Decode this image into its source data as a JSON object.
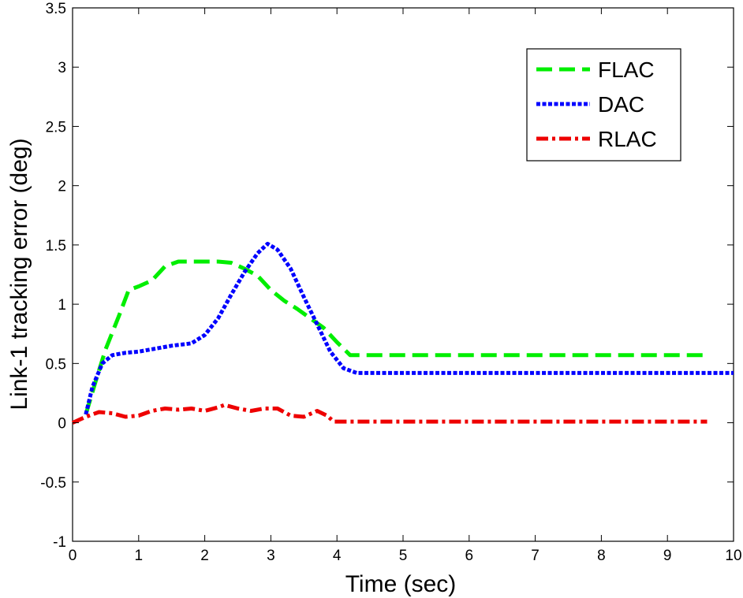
{
  "chart_data": {
    "type": "line",
    "xlabel": "Time (sec)",
    "ylabel": "Link-1 tracking error (deg)",
    "xlim": [
      0,
      10
    ],
    "ylim": [
      -1,
      3.5
    ],
    "xticks": [
      0,
      1,
      2,
      3,
      4,
      5,
      6,
      7,
      8,
      9,
      10
    ],
    "yticks": [
      -1,
      -0.5,
      0,
      0.5,
      1,
      1.5,
      2,
      2.5,
      3,
      3.5
    ],
    "xtick_labels": [
      "0",
      "1",
      "2",
      "3",
      "4",
      "5",
      "6",
      "7",
      "8",
      "9",
      "10"
    ],
    "ytick_labels": [
      "-1",
      "-0.5",
      "0",
      "0.5",
      "1",
      "1.5",
      "2",
      "2.5",
      "3",
      "3.5"
    ],
    "grid": false,
    "legend_position": "top-right",
    "series": [
      {
        "name": "FLAC",
        "color": "#00ee00",
        "dash": "dashed",
        "x": [
          0.2,
          0.35,
          0.5,
          0.7,
          0.85,
          1.0,
          1.2,
          1.4,
          1.6,
          1.8,
          2.0,
          2.2,
          2.4,
          2.6,
          2.8,
          3.0,
          3.2,
          3.4,
          3.6,
          3.8,
          4.0,
          4.2,
          5.0,
          6.0,
          7.0,
          8.0,
          9.0,
          9.6
        ],
        "y": [
          0.07,
          0.35,
          0.62,
          0.9,
          1.12,
          1.15,
          1.2,
          1.32,
          1.36,
          1.36,
          1.36,
          1.36,
          1.35,
          1.3,
          1.24,
          1.12,
          1.03,
          0.96,
          0.88,
          0.8,
          0.68,
          0.57,
          0.57,
          0.57,
          0.57,
          0.57,
          0.57,
          0.57
        ]
      },
      {
        "name": "DAC",
        "color": "#0000ff",
        "dash": "dotted",
        "x": [
          0.2,
          0.3,
          0.45,
          0.6,
          0.8,
          1.0,
          1.2,
          1.5,
          1.8,
          2.0,
          2.2,
          2.4,
          2.6,
          2.8,
          2.95,
          3.1,
          3.3,
          3.5,
          3.7,
          3.9,
          4.1,
          4.3,
          5.0,
          6.0,
          7.0,
          8.0,
          9.0,
          10.0
        ],
        "y": [
          0.07,
          0.3,
          0.5,
          0.57,
          0.59,
          0.6,
          0.62,
          0.65,
          0.67,
          0.74,
          0.88,
          1.08,
          1.27,
          1.43,
          1.51,
          1.46,
          1.3,
          1.06,
          0.83,
          0.6,
          0.46,
          0.42,
          0.42,
          0.42,
          0.42,
          0.42,
          0.42,
          0.42
        ]
      },
      {
        "name": "RLAC",
        "color": "#ee0000",
        "dash": "dash-dot",
        "x": [
          0.0,
          0.2,
          0.4,
          0.6,
          0.8,
          1.0,
          1.2,
          1.4,
          1.6,
          1.8,
          2.0,
          2.2,
          2.3,
          2.5,
          2.7,
          2.9,
          3.1,
          3.3,
          3.5,
          3.7,
          3.85,
          3.95,
          5.0,
          6.0,
          7.0,
          8.0,
          9.0,
          9.6
        ],
        "y": [
          0.0,
          0.05,
          0.09,
          0.08,
          0.05,
          0.06,
          0.1,
          0.12,
          0.11,
          0.12,
          0.1,
          0.13,
          0.15,
          0.12,
          0.1,
          0.12,
          0.12,
          0.06,
          0.05,
          0.1,
          0.06,
          0.01,
          0.01,
          0.01,
          0.01,
          0.01,
          0.01,
          0.01
        ]
      }
    ]
  }
}
